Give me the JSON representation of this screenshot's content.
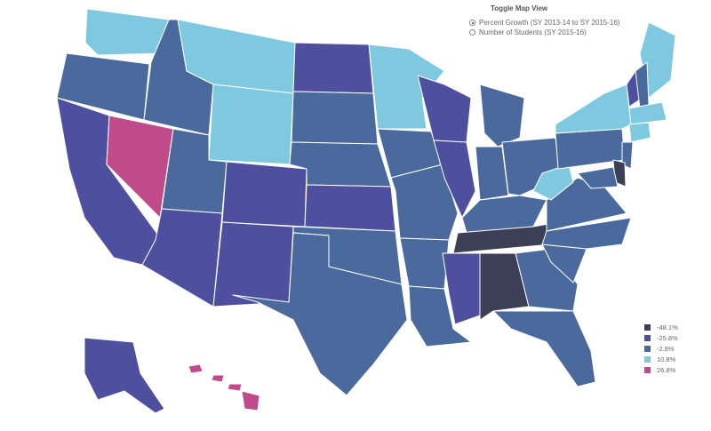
{
  "toggle": {
    "title": "Toggle Map View",
    "options": [
      {
        "label": "Percent Growth (SY 2013-14 to SY 2015-16)",
        "selected": true
      },
      {
        "label": "Number of Students (SY 2015-16)",
        "selected": false
      }
    ]
  },
  "legend": {
    "items": [
      {
        "label": "-48.1%",
        "color": "#3c3f55"
      },
      {
        "label": "-25.8%",
        "color": "#4f4fa0"
      },
      {
        "label": "-2.8%",
        "color": "#4a6a9e"
      },
      {
        "label": "10.8%",
        "color": "#7ec8e0"
      },
      {
        "label": "26.8%",
        "color": "#c04a8a"
      }
    ]
  },
  "states": {
    "WA": "lightblue",
    "OR": "blue",
    "CA": "purple",
    "NV": "magenta",
    "ID": "blue",
    "MT": "lightblue",
    "WY": "lightblue",
    "UT": "blue",
    "AZ": "purple",
    "CO": "purple",
    "NM": "purple",
    "ND": "purple",
    "SD": "blue",
    "NE": "blue",
    "KS": "purple",
    "OK": "blue",
    "TX": "blue",
    "MN": "lightblue",
    "IA": "blue",
    "MO": "blue",
    "AR": "blue",
    "LA": "blue",
    "WI": "purple",
    "IL": "purple",
    "MI": "blue",
    "IN": "blue",
    "OH": "blue",
    "KY": "blue",
    "TN": "dark",
    "MS": "purple",
    "AL": "dark",
    "GA": "blue",
    "FL": "blue",
    "SC": "blue",
    "NC": "blue",
    "VA": "blue",
    "WV": "lightblue",
    "PA": "blue",
    "NY": "lightblue",
    "ME": "lightblue",
    "VT": "purple",
    "NH": "blue",
    "MA": "lightblue",
    "CT": "lightblue",
    "NJ": "blue",
    "DE": "dark",
    "MD": "blue",
    "AK": "purple",
    "HI": "magenta"
  }
}
